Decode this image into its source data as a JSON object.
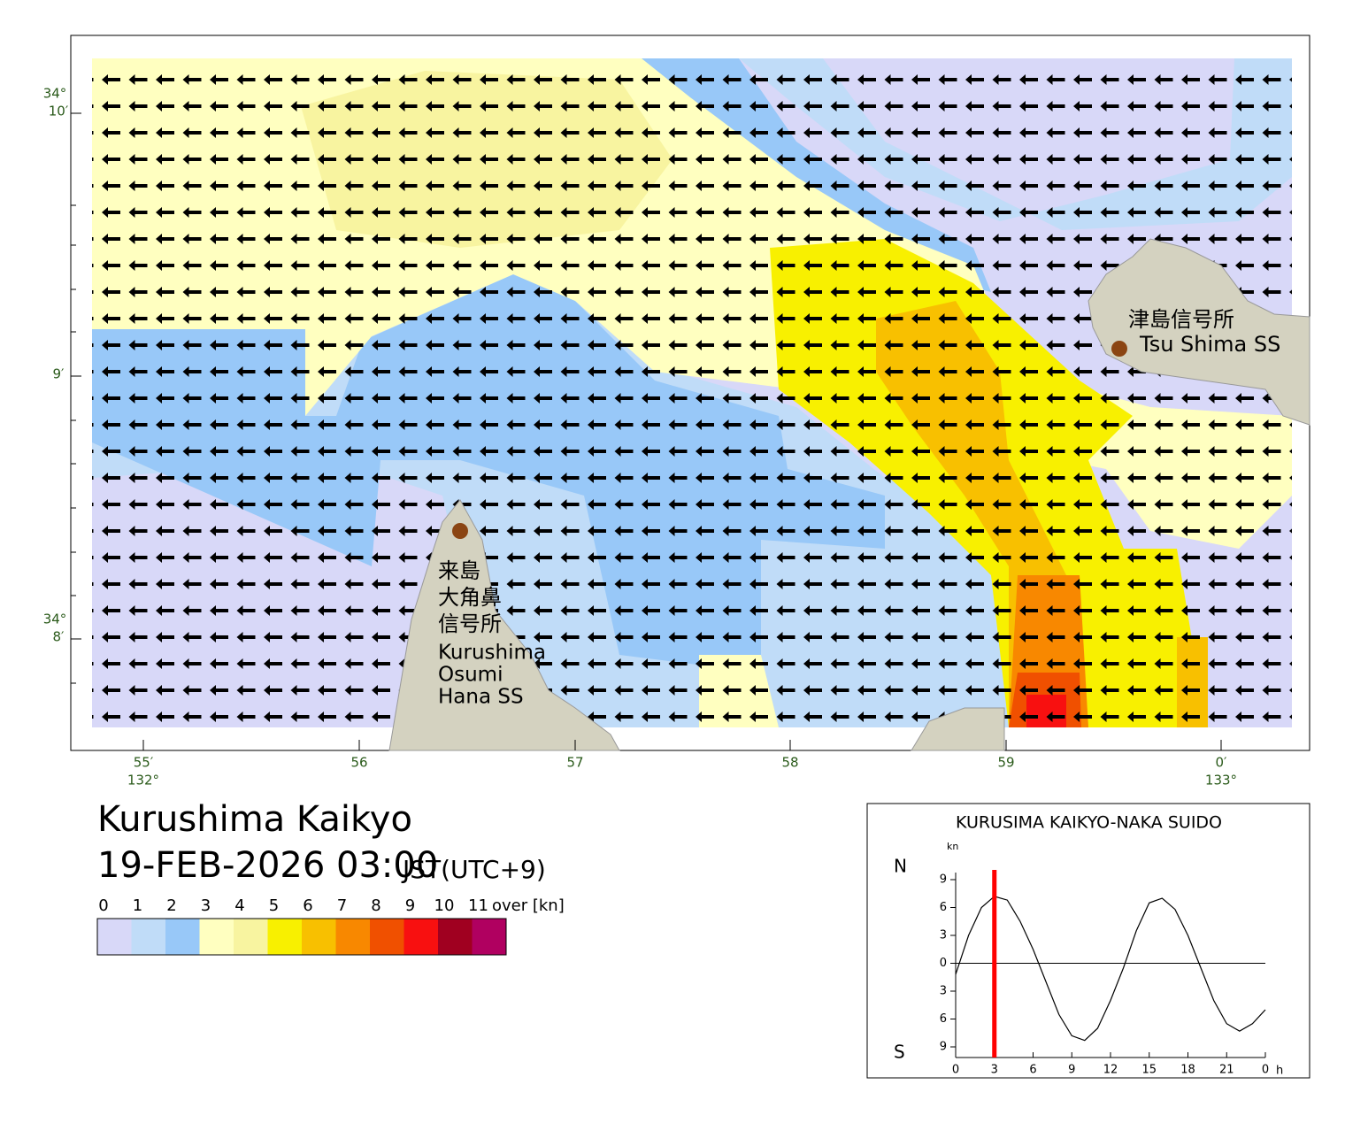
{
  "header": {
    "title": "Kurushima Kaikyo",
    "datetime": "19-FEB-2026 03:00",
    "timezone": "JST(UTC+9)"
  },
  "legend": {
    "labels": [
      "0",
      "1",
      "2",
      "3",
      "4",
      "5",
      "6",
      "7",
      "8",
      "9",
      "10",
      "11"
    ],
    "over": "over [kn]",
    "colors": [
      "#d8d8f8",
      "#c0dcf8",
      "#98c8f8",
      "#ffffc0",
      "#f8f4a0",
      "#f8f000",
      "#f8c000",
      "#f88800",
      "#f05000",
      "#f81010",
      "#a00020",
      "#b00060"
    ]
  },
  "map": {
    "lat_labels": [
      {
        "deg": "34°",
        "min": "10′"
      },
      {
        "min": "9′"
      },
      {
        "deg": "34°",
        "min": "8′"
      }
    ],
    "lon_labels": [
      {
        "min": "55′",
        "deg": "132°"
      },
      {
        "min": "56"
      },
      {
        "min": "57"
      },
      {
        "min": "58"
      },
      {
        "min": "59"
      },
      {
        "min": "0′",
        "deg": "133°"
      }
    ],
    "stations": [
      {
        "name_ja": "津島信号所",
        "name_en": "Tsu Shima SS"
      },
      {
        "name_ja_lines": [
          "来島",
          "大角鼻",
          "信号所"
        ],
        "name_en_lines": [
          "Kurushima",
          "Osumi",
          "Hana SS"
        ]
      }
    ]
  },
  "chart_data": {
    "type": "line",
    "title": "KURUSIMA KAIKYO-NAKA SUIDO",
    "y_unit": "kn",
    "north": "N",
    "south": "S",
    "x_unit": "h",
    "x": [
      0,
      1,
      2,
      3,
      4,
      5,
      6,
      7,
      8,
      9,
      10,
      11,
      12,
      13,
      14,
      15,
      16,
      17,
      18,
      19,
      20,
      21,
      22,
      23,
      24
    ],
    "series": [
      {
        "color": "#000000",
        "values": [
          -1.2,
          3,
          6,
          7.2,
          6.8,
          4.5,
          1.5,
          -2,
          -5.5,
          -7.8,
          -8.3,
          -7,
          -4,
          -0.5,
          3.5,
          6.5,
          7,
          5.8,
          3,
          -0.5,
          -4,
          -6.5,
          -7.3,
          -6.5,
          -5
        ]
      }
    ],
    "current_time": 3,
    "marker_color": "#ff0000",
    "xlim": [
      0,
      24
    ],
    "xticks": [
      0,
      3,
      6,
      9,
      12,
      15,
      18,
      21,
      {
        "value": 24,
        "label": "0"
      }
    ],
    "ylim": [
      -9,
      9
    ],
    "yticks": [
      9,
      6,
      3,
      0,
      {
        "value": -3,
        "label": "3"
      },
      {
        "value": -6,
        "label": "6"
      },
      {
        "value": -9,
        "label": "9"
      }
    ]
  }
}
